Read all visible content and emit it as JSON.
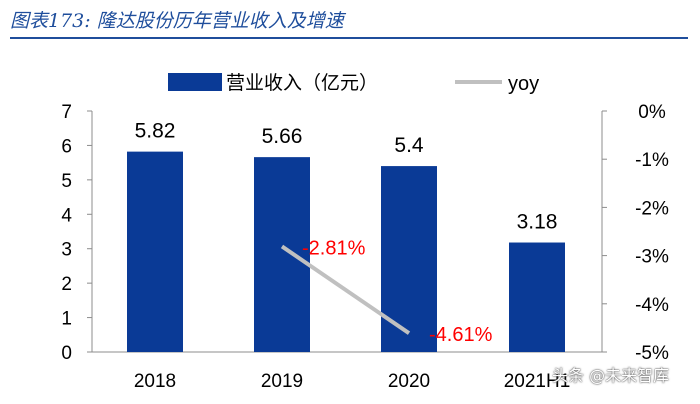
{
  "figure": {
    "title": "图表173: 隆达股份历年营业收入及增速"
  },
  "chart_data": {
    "type": "bar+line",
    "categories": [
      "2018",
      "2019",
      "2020",
      "2021H1"
    ],
    "series": [
      {
        "name": "营业收入（亿元）",
        "type": "bar",
        "axis": "left",
        "color": "#0a3a96",
        "values": [
          5.82,
          5.66,
          5.4,
          3.18
        ],
        "labels": [
          "5.82",
          "5.66",
          "5.4",
          "3.18"
        ]
      },
      {
        "name": "yoy",
        "type": "line",
        "axis": "right",
        "color": "#c0c0c0",
        "values": [
          null,
          -2.81,
          -4.61,
          null
        ],
        "labels": [
          "",
          "-2.81%",
          "-4.61%",
          ""
        ],
        "label_color": "#ff0000"
      }
    ],
    "y_left": {
      "min": 0,
      "max": 7,
      "ticks": [
        "0",
        "1",
        "2",
        "3",
        "4",
        "5",
        "6",
        "7"
      ]
    },
    "y_right": {
      "min": -5,
      "max": 0,
      "ticks": [
        "0%",
        "-1%",
        "-2%",
        "-3%",
        "-4%",
        "-5%"
      ],
      "tick_values": [
        0,
        -1,
        -2,
        -3,
        -4,
        -5
      ]
    },
    "legend": {
      "position": "top"
    }
  },
  "watermark": {
    "text": "头条 @未来智库"
  }
}
